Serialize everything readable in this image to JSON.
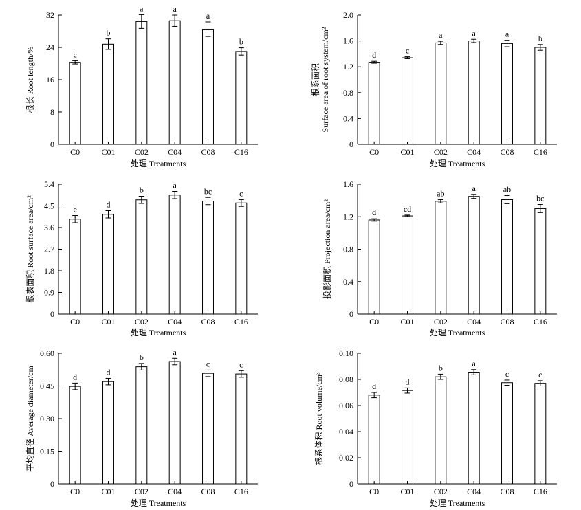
{
  "chart_data": [
    {
      "type": "bar",
      "categories": [
        "C0",
        "C01",
        "C02",
        "C04",
        "C08",
        "C16"
      ],
      "values": [
        20.3,
        24.8,
        30.4,
        30.6,
        28.5,
        23.0
      ],
      "errors": [
        0.4,
        1.3,
        1.7,
        1.4,
        1.8,
        0.9
      ],
      "significance": [
        "c",
        "b",
        "a",
        "a",
        "a",
        "b"
      ],
      "xlabel": "处理 Treatments",
      "ylabel": [
        "根长 Root length/%"
      ],
      "ylim": [
        0,
        32
      ],
      "yticks": [
        "0",
        "8",
        "16",
        "24",
        "32"
      ],
      "bar_fill": "#ffffff",
      "stroke_color": "#000000"
    },
    {
      "type": "bar",
      "categories": [
        "C0",
        "C01",
        "C02",
        "C04",
        "C08",
        "C16"
      ],
      "values": [
        1.27,
        1.34,
        1.57,
        1.6,
        1.56,
        1.5
      ],
      "errors": [
        0.015,
        0.015,
        0.025,
        0.025,
        0.05,
        0.045
      ],
      "significance": [
        "d",
        "c",
        "a",
        "a",
        "a",
        "b"
      ],
      "xlabel": "处理 Treatments",
      "ylabel": [
        "根系面积",
        "Surface area of root system/cm²"
      ],
      "ylim": [
        0,
        2.0
      ],
      "yticks": [
        "0",
        "0.4",
        "0.8",
        "1.2",
        "1.6",
        "2.0"
      ],
      "bar_fill": "#ffffff",
      "stroke_color": "#000000"
    },
    {
      "type": "bar",
      "categories": [
        "C0",
        "C01",
        "C02",
        "C04",
        "C08",
        "C16"
      ],
      "values": [
        3.95,
        4.15,
        4.75,
        4.95,
        4.7,
        4.62
      ],
      "errors": [
        0.15,
        0.15,
        0.15,
        0.15,
        0.15,
        0.14
      ],
      "significance": [
        "e",
        "d",
        "b",
        "a",
        "bc",
        "c"
      ],
      "xlabel": "处理 Treatments",
      "ylabel": [
        "根表面积 Root surface area/cm²"
      ],
      "ylim": [
        0,
        5.4
      ],
      "yticks": [
        "0",
        "0.9",
        "1.8",
        "2.7",
        "3.6",
        "4.5",
        "5.4"
      ],
      "bar_fill": "#ffffff",
      "stroke_color": "#000000"
    },
    {
      "type": "bar",
      "categories": [
        "C0",
        "C01",
        "C02",
        "C04",
        "C08",
        "C16"
      ],
      "values": [
        1.16,
        1.21,
        1.39,
        1.45,
        1.41,
        1.3
      ],
      "errors": [
        0.015,
        0.01,
        0.02,
        0.025,
        0.05,
        0.05
      ],
      "significance": [
        "d",
        "cd",
        "ab",
        "a",
        "ab",
        "bc"
      ],
      "xlabel": "处理 Treatments",
      "ylabel": [
        "投影面积 Projection area/cm²"
      ],
      "ylim": [
        0,
        1.6
      ],
      "yticks": [
        "0",
        "0.4",
        "0.8",
        "1.2",
        "1.6"
      ],
      "bar_fill": "#ffffff",
      "stroke_color": "#000000"
    },
    {
      "type": "bar",
      "categories": [
        "C0",
        "C01",
        "C02",
        "C04",
        "C08",
        "C16"
      ],
      "values": [
        0.448,
        0.47,
        0.538,
        0.562,
        0.508,
        0.505
      ],
      "errors": [
        0.015,
        0.015,
        0.015,
        0.015,
        0.015,
        0.015
      ],
      "significance": [
        "d",
        "d",
        "b",
        "a",
        "c",
        "c"
      ],
      "xlabel": "处理 Treatments",
      "ylabel": [
        "平均直径 Average diameter/cm"
      ],
      "ylim": [
        0,
        0.6
      ],
      "yticks": [
        "0",
        "0.15",
        "0.30",
        "0.45",
        "0.60"
      ],
      "bar_fill": "#ffffff",
      "stroke_color": "#000000"
    },
    {
      "type": "bar",
      "categories": [
        "C0",
        "C01",
        "C02",
        "C04",
        "C08",
        "C16"
      ],
      "values": [
        0.068,
        0.0715,
        0.082,
        0.0855,
        0.0775,
        0.077
      ],
      "errors": [
        0.002,
        0.002,
        0.002,
        0.002,
        0.002,
        0.002
      ],
      "significance": [
        "d",
        "d",
        "b",
        "a",
        "c",
        "c"
      ],
      "xlabel": "处理 Treatments",
      "ylabel": [
        "根系体积 Root volume/cm³"
      ],
      "ylim": [
        0,
        0.1
      ],
      "yticks": [
        "0",
        "0.02",
        "0.04",
        "0.06",
        "0.08",
        "0.10"
      ],
      "bar_fill": "#ffffff",
      "stroke_color": "#000000"
    }
  ]
}
